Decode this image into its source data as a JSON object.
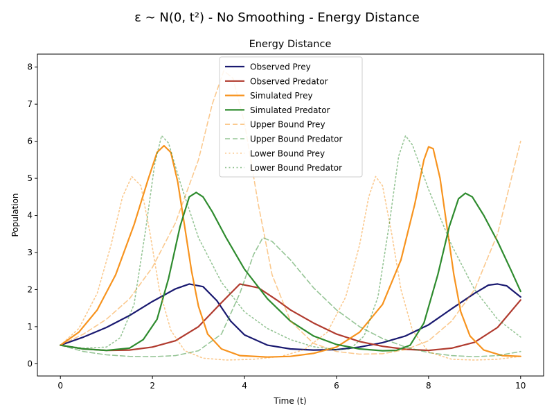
{
  "figure": {
    "suptitle": "ε ∼ N(0, t²) - No Smoothing - Energy Distance"
  },
  "chart_data": {
    "type": "line",
    "title": "Energy Distance",
    "xlabel": "Time (t)",
    "ylabel": "Population",
    "xlim": [
      -0.5,
      10.5
    ],
    "ylim": [
      -0.33,
      8.35
    ],
    "xticks": [
      0,
      2,
      4,
      6,
      8,
      10
    ],
    "yticks": [
      0,
      1,
      2,
      3,
      4,
      5,
      6,
      7,
      8
    ],
    "grid": false,
    "legend_position": "top-center",
    "series": [
      {
        "name": "Observed Prey",
        "color": "#191970",
        "dash": "solid",
        "width": 2.2,
        "opacity": 1,
        "points": [
          [
            0,
            0.5
          ],
          [
            0.5,
            0.72
          ],
          [
            1,
            0.98
          ],
          [
            1.5,
            1.3
          ],
          [
            2,
            1.68
          ],
          [
            2.5,
            2.02
          ],
          [
            2.8,
            2.15
          ],
          [
            3.1,
            2.08
          ],
          [
            3.4,
            1.7
          ],
          [
            3.7,
            1.15
          ],
          [
            4,
            0.78
          ],
          [
            4.5,
            0.5
          ],
          [
            5,
            0.4
          ],
          [
            5.5,
            0.37
          ],
          [
            6,
            0.38
          ],
          [
            6.5,
            0.45
          ],
          [
            7,
            0.57
          ],
          [
            7.5,
            0.75
          ],
          [
            8,
            1.05
          ],
          [
            8.5,
            1.48
          ],
          [
            9,
            1.9
          ],
          [
            9.3,
            2.12
          ],
          [
            9.5,
            2.15
          ],
          [
            9.7,
            2.1
          ],
          [
            10,
            1.8
          ]
        ]
      },
      {
        "name": "Observed Predator",
        "color": "#b03a2e",
        "dash": "solid",
        "width": 2.2,
        "opacity": 1,
        "points": [
          [
            0,
            0.5
          ],
          [
            0.5,
            0.4
          ],
          [
            1,
            0.36
          ],
          [
            1.5,
            0.37
          ],
          [
            2,
            0.45
          ],
          [
            2.5,
            0.62
          ],
          [
            3,
            1.0
          ],
          [
            3.5,
            1.65
          ],
          [
            3.9,
            2.15
          ],
          [
            4.3,
            2.05
          ],
          [
            4.7,
            1.72
          ],
          [
            5,
            1.45
          ],
          [
            5.5,
            1.1
          ],
          [
            6,
            0.8
          ],
          [
            6.5,
            0.6
          ],
          [
            7,
            0.47
          ],
          [
            7.5,
            0.39
          ],
          [
            8,
            0.36
          ],
          [
            8.5,
            0.42
          ],
          [
            9,
            0.58
          ],
          [
            9.5,
            0.98
          ],
          [
            10,
            1.72
          ]
        ]
      },
      {
        "name": "Simulated Prey",
        "color": "#f7931e",
        "dash": "solid",
        "width": 2.2,
        "opacity": 1,
        "points": [
          [
            0,
            0.5
          ],
          [
            0.4,
            0.85
          ],
          [
            0.8,
            1.45
          ],
          [
            1.2,
            2.4
          ],
          [
            1.6,
            3.75
          ],
          [
            1.9,
            4.95
          ],
          [
            2.1,
            5.7
          ],
          [
            2.25,
            5.88
          ],
          [
            2.4,
            5.7
          ],
          [
            2.55,
            4.9
          ],
          [
            2.7,
            3.7
          ],
          [
            2.85,
            2.5
          ],
          [
            3,
            1.55
          ],
          [
            3.2,
            0.8
          ],
          [
            3.5,
            0.4
          ],
          [
            3.9,
            0.22
          ],
          [
            4.5,
            0.18
          ],
          [
            5,
            0.2
          ],
          [
            5.5,
            0.28
          ],
          [
            6,
            0.45
          ],
          [
            6.5,
            0.85
          ],
          [
            7,
            1.6
          ],
          [
            7.4,
            2.8
          ],
          [
            7.7,
            4.3
          ],
          [
            7.9,
            5.5
          ],
          [
            8,
            5.85
          ],
          [
            8.1,
            5.8
          ],
          [
            8.25,
            5.0
          ],
          [
            8.4,
            3.7
          ],
          [
            8.55,
            2.4
          ],
          [
            8.7,
            1.4
          ],
          [
            8.9,
            0.75
          ],
          [
            9.2,
            0.37
          ],
          [
            9.6,
            0.22
          ],
          [
            10,
            0.2
          ]
        ]
      },
      {
        "name": "Simulated Predator",
        "color": "#2e8b2e",
        "dash": "solid",
        "width": 2.2,
        "opacity": 1,
        "points": [
          [
            0,
            0.5
          ],
          [
            0.5,
            0.4
          ],
          [
            1,
            0.36
          ],
          [
            1.5,
            0.42
          ],
          [
            1.8,
            0.65
          ],
          [
            2.1,
            1.2
          ],
          [
            2.35,
            2.3
          ],
          [
            2.6,
            3.7
          ],
          [
            2.8,
            4.5
          ],
          [
            2.95,
            4.62
          ],
          [
            3.1,
            4.5
          ],
          [
            3.3,
            4.1
          ],
          [
            3.6,
            3.4
          ],
          [
            4,
            2.55
          ],
          [
            4.5,
            1.75
          ],
          [
            5,
            1.15
          ],
          [
            5.5,
            0.75
          ],
          [
            6,
            0.52
          ],
          [
            6.5,
            0.4
          ],
          [
            7,
            0.35
          ],
          [
            7.3,
            0.36
          ],
          [
            7.6,
            0.5
          ],
          [
            7.9,
            1.1
          ],
          [
            8.2,
            2.4
          ],
          [
            8.45,
            3.7
          ],
          [
            8.65,
            4.45
          ],
          [
            8.8,
            4.6
          ],
          [
            8.95,
            4.5
          ],
          [
            9.2,
            4.0
          ],
          [
            9.5,
            3.3
          ],
          [
            9.8,
            2.5
          ],
          [
            10,
            1.95
          ]
        ]
      },
      {
        "name": "Upper Bound Prey",
        "color": "#f7931e",
        "dash": "dashed",
        "width": 1.6,
        "opacity": 0.5,
        "points": [
          [
            0,
            0.5
          ],
          [
            0.5,
            0.8
          ],
          [
            1,
            1.2
          ],
          [
            1.5,
            1.75
          ],
          [
            2,
            2.6
          ],
          [
            2.5,
            3.8
          ],
          [
            3,
            5.5
          ],
          [
            3.3,
            7.0
          ],
          [
            3.55,
            7.9
          ],
          [
            3.75,
            7.7
          ],
          [
            4,
            6.5
          ],
          [
            4.3,
            4.3
          ],
          [
            4.6,
            2.4
          ],
          [
            5,
            1.15
          ],
          [
            5.5,
            0.55
          ],
          [
            6,
            0.33
          ],
          [
            6.5,
            0.26
          ],
          [
            7,
            0.27
          ],
          [
            7.5,
            0.38
          ],
          [
            8,
            0.62
          ],
          [
            8.5,
            1.15
          ],
          [
            9,
            2.0
          ],
          [
            9.5,
            3.5
          ],
          [
            10,
            6.0
          ]
        ]
      },
      {
        "name": "Upper Bound Predator",
        "color": "#2e8b2e",
        "dash": "dashed",
        "width": 1.6,
        "opacity": 0.5,
        "points": [
          [
            0,
            0.5
          ],
          [
            0.5,
            0.33
          ],
          [
            1,
            0.24
          ],
          [
            1.5,
            0.2
          ],
          [
            2,
            0.19
          ],
          [
            2.5,
            0.22
          ],
          [
            3,
            0.35
          ],
          [
            3.5,
            0.8
          ],
          [
            3.9,
            1.9
          ],
          [
            4.2,
            2.95
          ],
          [
            4.4,
            3.4
          ],
          [
            4.6,
            3.3
          ],
          [
            5,
            2.8
          ],
          [
            5.5,
            2.05
          ],
          [
            6,
            1.45
          ],
          [
            6.5,
            1.0
          ],
          [
            7,
            0.68
          ],
          [
            7.5,
            0.45
          ],
          [
            8,
            0.3
          ],
          [
            8.5,
            0.22
          ],
          [
            9,
            0.19
          ],
          [
            9.5,
            0.22
          ],
          [
            10,
            0.33
          ]
        ]
      },
      {
        "name": "Lower Bound Prey",
        "color": "#f7931e",
        "dash": "dotted",
        "width": 1.6,
        "opacity": 0.5,
        "points": [
          [
            0,
            0.5
          ],
          [
            0.4,
            0.95
          ],
          [
            0.8,
            1.9
          ],
          [
            1.1,
            3.2
          ],
          [
            1.35,
            4.5
          ],
          [
            1.55,
            5.05
          ],
          [
            1.75,
            4.8
          ],
          [
            1.95,
            3.5
          ],
          [
            2.15,
            2.0
          ],
          [
            2.4,
            0.9
          ],
          [
            2.7,
            0.35
          ],
          [
            3.1,
            0.15
          ],
          [
            3.6,
            0.1
          ],
          [
            4.2,
            0.12
          ],
          [
            4.8,
            0.2
          ],
          [
            5.3,
            0.38
          ],
          [
            5.8,
            0.85
          ],
          [
            6.2,
            1.8
          ],
          [
            6.5,
            3.2
          ],
          [
            6.7,
            4.5
          ],
          [
            6.85,
            5.05
          ],
          [
            7.0,
            4.8
          ],
          [
            7.2,
            3.5
          ],
          [
            7.4,
            2.0
          ],
          [
            7.65,
            0.9
          ],
          [
            8.0,
            0.32
          ],
          [
            8.5,
            0.12
          ],
          [
            9,
            0.1
          ],
          [
            9.5,
            0.12
          ],
          [
            10,
            0.2
          ]
        ]
      },
      {
        "name": "Lower Bound Predator",
        "color": "#2e8b2e",
        "dash": "dotted",
        "width": 1.6,
        "opacity": 0.5,
        "points": [
          [
            0,
            0.5
          ],
          [
            0.5,
            0.42
          ],
          [
            1,
            0.45
          ],
          [
            1.3,
            0.7
          ],
          [
            1.6,
            1.6
          ],
          [
            1.85,
            3.6
          ],
          [
            2.05,
            5.4
          ],
          [
            2.2,
            6.15
          ],
          [
            2.35,
            5.95
          ],
          [
            2.6,
            4.9
          ],
          [
            3,
            3.4
          ],
          [
            3.5,
            2.2
          ],
          [
            4,
            1.4
          ],
          [
            4.5,
            0.95
          ],
          [
            5,
            0.65
          ],
          [
            5.5,
            0.46
          ],
          [
            6,
            0.38
          ],
          [
            6.3,
            0.4
          ],
          [
            6.6,
            0.75
          ],
          [
            6.9,
            1.8
          ],
          [
            7.15,
            3.8
          ],
          [
            7.35,
            5.6
          ],
          [
            7.5,
            6.15
          ],
          [
            7.65,
            5.9
          ],
          [
            8,
            4.7
          ],
          [
            8.5,
            3.2
          ],
          [
            9,
            2.0
          ],
          [
            9.5,
            1.2
          ],
          [
            10,
            0.72
          ]
        ]
      }
    ]
  }
}
